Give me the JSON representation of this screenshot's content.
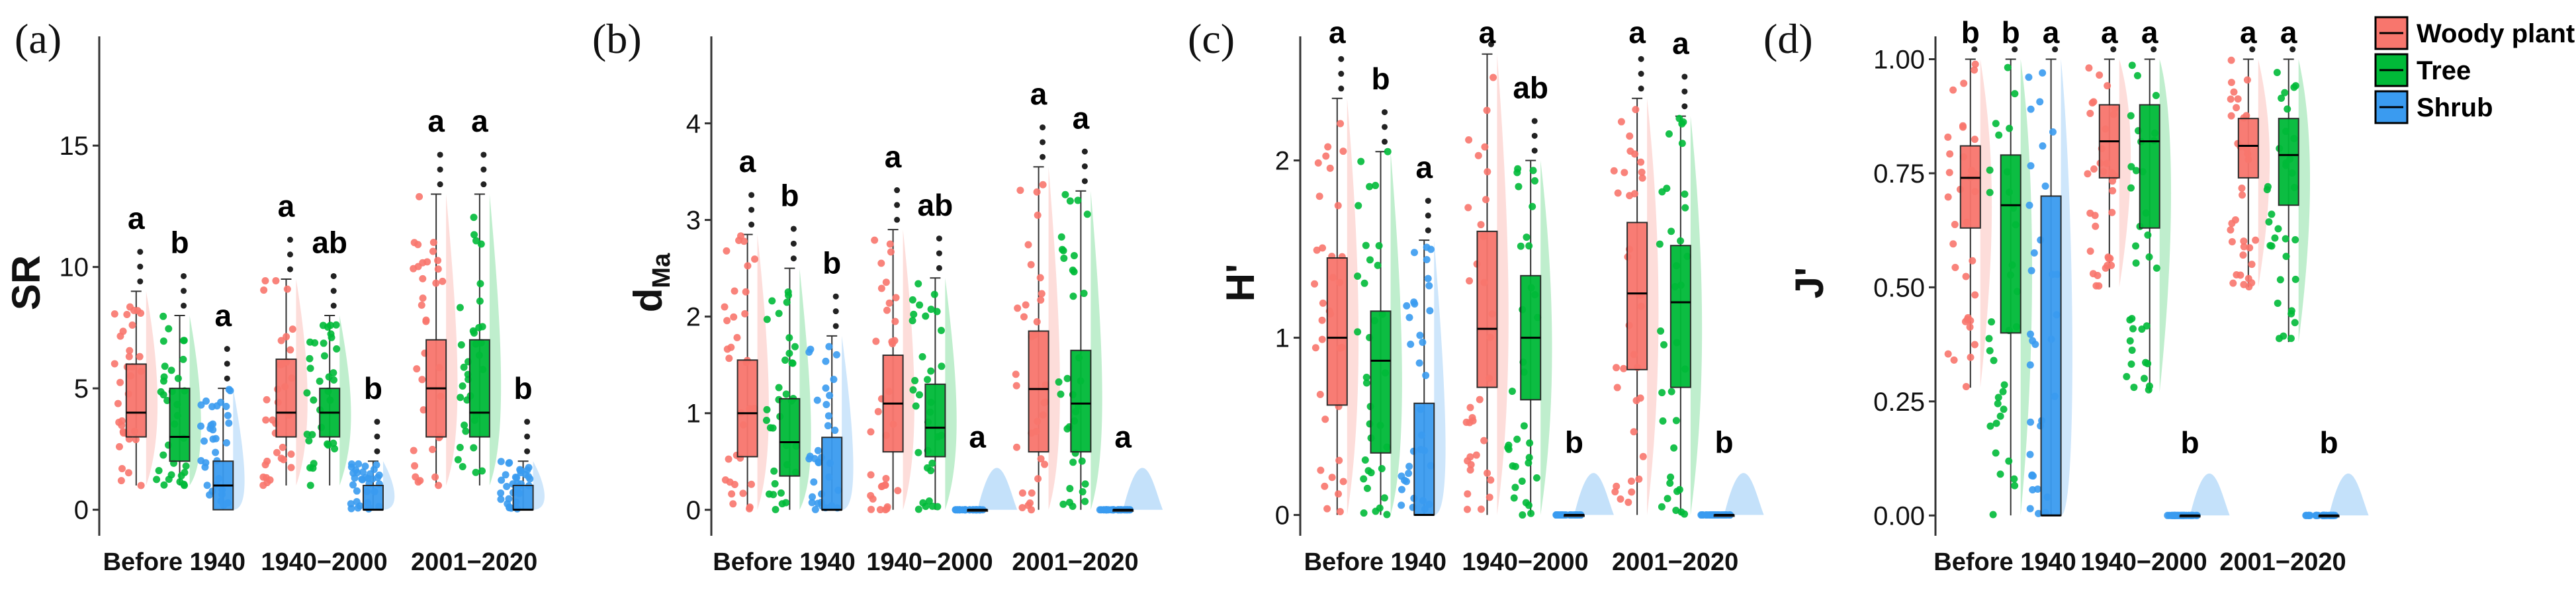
{
  "legend": [
    {
      "name": "Woody plant",
      "color": "#F8766D"
    },
    {
      "name": "Tree",
      "color": "#00BA38"
    },
    {
      "name": "Shrub",
      "color": "#3A9BF0"
    }
  ],
  "chart_data": [
    {
      "type": "box",
      "panel_label": "(a)",
      "ylabel": "SR",
      "ylabel_sub": "",
      "ylim": [
        -0.8,
        19.5
      ],
      "yticks": [
        0,
        5,
        10,
        15
      ],
      "ytick_labels": [
        "0",
        "5",
        "10",
        "15"
      ],
      "categories": [
        "Before 1940",
        "1940−2000",
        "2001−2020"
      ],
      "series": [
        {
          "name": "Woody plant",
          "groups": [
            {
              "q1": 3,
              "median": 4,
              "q3": 6,
              "min": 1,
              "max": 9,
              "letter": "a"
            },
            {
              "q1": 3,
              "median": 4,
              "q3": 6.2,
              "min": 1,
              "max": 9.5,
              "letter": "a"
            },
            {
              "q1": 3,
              "median": 5,
              "q3": 7,
              "min": 1,
              "max": 13,
              "letter": "a"
            }
          ]
        },
        {
          "name": "Tree",
          "groups": [
            {
              "q1": 2,
              "median": 3,
              "q3": 5,
              "min": 1,
              "max": 8,
              "letter": "b"
            },
            {
              "q1": 3,
              "median": 4,
              "q3": 5,
              "min": 1,
              "max": 8,
              "letter": "ab"
            },
            {
              "q1": 3,
              "median": 4,
              "q3": 7,
              "min": 1,
              "max": 13,
              "letter": "a"
            }
          ]
        },
        {
          "name": "Shrub",
          "groups": [
            {
              "q1": 0,
              "median": 1,
              "q3": 2,
              "min": 0,
              "max": 5,
              "letter": "a"
            },
            {
              "q1": 0,
              "median": 0,
              "q3": 1,
              "min": 0,
              "max": 2,
              "letter": "b"
            },
            {
              "q1": 0,
              "median": 0,
              "q3": 1,
              "min": 0,
              "max": 2,
              "letter": "b"
            }
          ]
        }
      ]
    },
    {
      "type": "box",
      "panel_label": "(b)",
      "ylabel": "d",
      "ylabel_sub": "Ma",
      "ylim": [
        -0.2,
        4.9
      ],
      "yticks": [
        0,
        1,
        2,
        3,
        4
      ],
      "ytick_labels": [
        "0",
        "1",
        "2",
        "3",
        "4"
      ],
      "categories": [
        "Before 1940",
        "1940−2000",
        "2001−2020"
      ],
      "series": [
        {
          "name": "Woody plant",
          "groups": [
            {
              "q1": 0.55,
              "median": 1.0,
              "q3": 1.55,
              "min": 0,
              "max": 2.85,
              "letter": "a"
            },
            {
              "q1": 0.6,
              "median": 1.1,
              "q3": 1.6,
              "min": 0,
              "max": 2.9,
              "letter": "a"
            },
            {
              "q1": 0.6,
              "median": 1.25,
              "q3": 1.85,
              "min": 0,
              "max": 3.55,
              "letter": "a"
            }
          ]
        },
        {
          "name": "Tree",
          "groups": [
            {
              "q1": 0.35,
              "median": 0.7,
              "q3": 1.15,
              "min": 0,
              "max": 2.5,
              "letter": "b"
            },
            {
              "q1": 0.55,
              "median": 0.85,
              "q3": 1.3,
              "min": 0,
              "max": 2.4,
              "letter": "ab"
            },
            {
              "q1": 0.6,
              "median": 1.1,
              "q3": 1.65,
              "min": 0,
              "max": 3.3,
              "letter": "a"
            }
          ]
        },
        {
          "name": "Shrub",
          "groups": [
            {
              "q1": 0,
              "median": 0,
              "q3": 0.75,
              "min": 0,
              "max": 1.8,
              "letter": "b"
            },
            {
              "q1": 0,
              "median": 0,
              "q3": 0,
              "min": 0,
              "max": 0,
              "letter": "a"
            },
            {
              "q1": 0,
              "median": 0,
              "q3": 0,
              "min": 0,
              "max": 0,
              "letter": "a"
            }
          ]
        }
      ]
    },
    {
      "type": "box",
      "panel_label": "(c)",
      "ylabel": "H'",
      "ylabel_sub": "",
      "ylim": [
        -0.08,
        2.7
      ],
      "yticks": [
        0,
        1,
        2
      ],
      "ytick_labels": [
        "0",
        "1",
        "2"
      ],
      "categories": [
        "Before 1940",
        "1940−2000",
        "2001−2020"
      ],
      "series": [
        {
          "name": "Woody plant",
          "groups": [
            {
              "q1": 0.62,
              "median": 1.0,
              "q3": 1.45,
              "min": 0,
              "max": 2.35,
              "letter": "a"
            },
            {
              "q1": 0.72,
              "median": 1.05,
              "q3": 1.6,
              "min": 0,
              "max": 2.6,
              "letter": "a"
            },
            {
              "q1": 0.82,
              "median": 1.25,
              "q3": 1.65,
              "min": 0,
              "max": 2.35,
              "letter": "a"
            }
          ]
        },
        {
          "name": "Tree",
          "groups": [
            {
              "q1": 0.35,
              "median": 0.87,
              "q3": 1.15,
              "min": 0,
              "max": 2.05,
              "letter": "b"
            },
            {
              "q1": 0.65,
              "median": 1.0,
              "q3": 1.35,
              "min": 0,
              "max": 2.0,
              "letter": "ab"
            },
            {
              "q1": 0.72,
              "median": 1.2,
              "q3": 1.52,
              "min": 0,
              "max": 2.25,
              "letter": "a"
            }
          ]
        },
        {
          "name": "Shrub",
          "groups": [
            {
              "q1": 0,
              "median": 0,
              "q3": 0.63,
              "min": 0,
              "max": 1.55,
              "letter": "a"
            },
            {
              "q1": 0,
              "median": 0,
              "q3": 0,
              "min": 0,
              "max": 0,
              "letter": "b"
            },
            {
              "q1": 0,
              "median": 0,
              "q3": 0,
              "min": 0,
              "max": 0,
              "letter": "b"
            }
          ]
        }
      ]
    },
    {
      "type": "box",
      "panel_label": "(d)",
      "ylabel": "J'",
      "ylabel_sub": "",
      "ylim": [
        -0.03,
        1.05
      ],
      "yticks": [
        0,
        0.25,
        0.5,
        0.75,
        1.0
      ],
      "ytick_labels": [
        "0.00",
        "0.25",
        "0.50",
        "0.75",
        "1.00"
      ],
      "categories": [
        "Before 1940",
        "1940−2000",
        "2001−2020"
      ],
      "series": [
        {
          "name": "Woody plant",
          "groups": [
            {
              "q1": 0.63,
              "median": 0.74,
              "q3": 0.81,
              "min": 0.28,
              "max": 1.0,
              "letter": "b"
            },
            {
              "q1": 0.74,
              "median": 0.82,
              "q3": 0.9,
              "min": 0.5,
              "max": 1.0,
              "letter": "a"
            },
            {
              "q1": 0.74,
              "median": 0.81,
              "q3": 0.87,
              "min": 0.5,
              "max": 1.0,
              "letter": "a"
            }
          ]
        },
        {
          "name": "Tree",
          "groups": [
            {
              "q1": 0.4,
              "median": 0.68,
              "q3": 0.79,
              "min": 0,
              "max": 1.0,
              "letter": "b"
            },
            {
              "q1": 0.63,
              "median": 0.82,
              "q3": 0.9,
              "min": 0.27,
              "max": 1.0,
              "letter": "a"
            },
            {
              "q1": 0.68,
              "median": 0.79,
              "q3": 0.87,
              "min": 0.38,
              "max": 1.0,
              "letter": "a"
            }
          ]
        },
        {
          "name": "Shrub",
          "groups": [
            {
              "q1": 0,
              "median": 0,
              "q3": 0.7,
              "min": 0,
              "max": 1.0,
              "letter": "a"
            },
            {
              "q1": 0,
              "median": 0,
              "q3": 0,
              "min": 0,
              "max": 0,
              "letter": "b"
            },
            {
              "q1": 0,
              "median": 0,
              "q3": 0,
              "min": 0,
              "max": 0,
              "letter": "b"
            }
          ]
        }
      ]
    }
  ]
}
